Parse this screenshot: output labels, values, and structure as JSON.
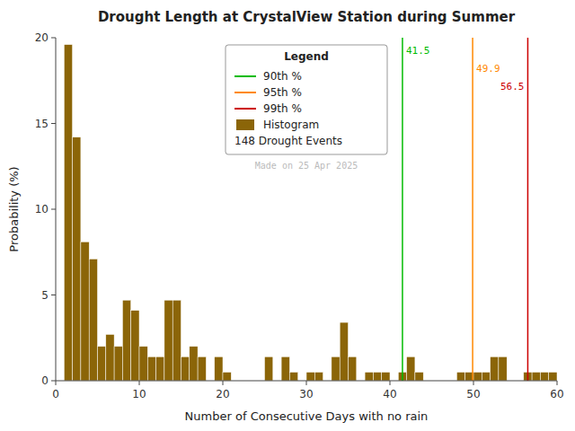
{
  "chart_data": {
    "type": "histogram",
    "title": "Drought Length at CrystalView Station during Summer",
    "x_label": "Number of Consecutive Days with no rain",
    "y_label": "Probability (%)",
    "bins": [
      1,
      2,
      3,
      4,
      5,
      6,
      7,
      8,
      9,
      10,
      11,
      12,
      13,
      14,
      15,
      16,
      17,
      18,
      19,
      20,
      21,
      22,
      23,
      24,
      25,
      26,
      27,
      28,
      29,
      30,
      31,
      32,
      33,
      34,
      35,
      36,
      37,
      38,
      39,
      40,
      41,
      42,
      43,
      44,
      45,
      46,
      47,
      48,
      49,
      50,
      51,
      52,
      53,
      54,
      55,
      56,
      57,
      58,
      59,
      60
    ],
    "series": [
      {
        "name": "Histogram",
        "color": "#8B6508",
        "values": [
          19.6,
          14.2,
          8.1,
          7.1,
          2.0,
          2.7,
          2.0,
          4.7,
          4.1,
          2.0,
          1.4,
          1.4,
          4.7,
          4.7,
          1.4,
          2.0,
          1.4,
          0.0,
          1.4,
          0.5,
          0.0,
          0.0,
          0.0,
          0.0,
          1.4,
          0.0,
          1.4,
          0.5,
          0.0,
          0.5,
          0.5,
          0.0,
          1.4,
          3.4,
          1.4,
          0.0,
          0.5,
          0.5,
          0.5,
          0.0,
          0.5,
          1.4,
          0.5,
          0.0,
          0.0,
          0.0,
          0.0,
          0.5,
          0.5,
          0.5,
          0.5,
          1.4,
          1.4,
          0.0,
          0.0,
          0.5,
          0.5,
          0.5,
          0.5
        ]
      }
    ],
    "lines": [
      {
        "name": "90th %",
        "x": 41.5,
        "color": "#00BB00"
      },
      {
        "name": "95th %",
        "x": 49.9,
        "color": "#FF8800"
      },
      {
        "name": "99th %",
        "x": 56.5,
        "color": "#CC0000"
      }
    ],
    "legend_title": "Legend",
    "legend_note": "148 Drought Events",
    "annotations": [
      {
        "text": "Made on 25 Apr 2025",
        "color": "#BBBBBB"
      }
    ],
    "xlim": [
      0,
      60
    ],
    "ylim": [
      0,
      20
    ],
    "xticks": [
      0,
      10,
      20,
      30,
      40,
      50,
      60
    ],
    "yticks": [
      0,
      5,
      10,
      15,
      20
    ],
    "grid": false,
    "legend": "upper center"
  }
}
